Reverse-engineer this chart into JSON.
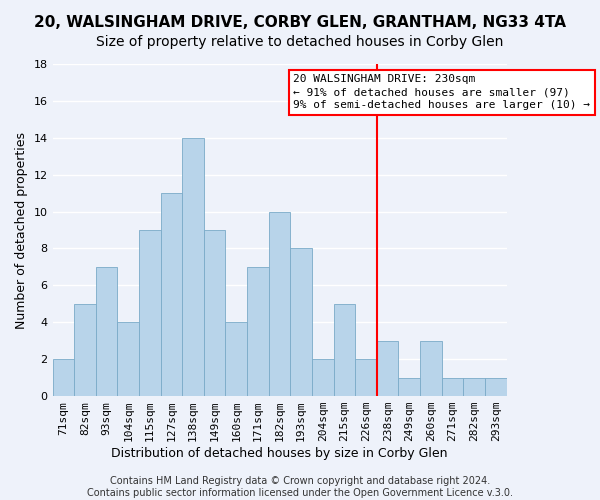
{
  "title": "20, WALSINGHAM DRIVE, CORBY GLEN, GRANTHAM, NG33 4TA",
  "subtitle": "Size of property relative to detached houses in Corby Glen",
  "xlabel": "Distribution of detached houses by size in Corby Glen",
  "ylabel": "Number of detached properties",
  "bar_color": "#b8d4ea",
  "bar_edge_color": "#7aaac8",
  "categories": [
    "71sqm",
    "82sqm",
    "93sqm",
    "104sqm",
    "115sqm",
    "127sqm",
    "138sqm",
    "149sqm",
    "160sqm",
    "171sqm",
    "182sqm",
    "193sqm",
    "204sqm",
    "215sqm",
    "226sqm",
    "238sqm",
    "249sqm",
    "260sqm",
    "271sqm",
    "282sqm",
    "293sqm"
  ],
  "values": [
    2,
    5,
    7,
    4,
    9,
    11,
    14,
    9,
    4,
    7,
    10,
    8,
    2,
    5,
    2,
    3,
    1,
    3,
    1,
    1,
    1
  ],
  "vline_color": "red",
  "vline_index": 14,
  "ylim": [
    0,
    18
  ],
  "yticks": [
    0,
    2,
    4,
    6,
    8,
    10,
    12,
    14,
    16,
    18
  ],
  "annotation_title": "20 WALSINGHAM DRIVE: 230sqm",
  "annotation_line1": "← 91% of detached houses are smaller (97)",
  "annotation_line2": "9% of semi-detached houses are larger (10) →",
  "footer1": "Contains HM Land Registry data © Crown copyright and database right 2024.",
  "footer2": "Contains public sector information licensed under the Open Government Licence v.3.0.",
  "background_color": "#eef2fa",
  "grid_color": "white",
  "title_fontsize": 11,
  "subtitle_fontsize": 10,
  "axis_label_fontsize": 9,
  "tick_fontsize": 8,
  "annotation_fontsize": 8,
  "footer_fontsize": 7
}
